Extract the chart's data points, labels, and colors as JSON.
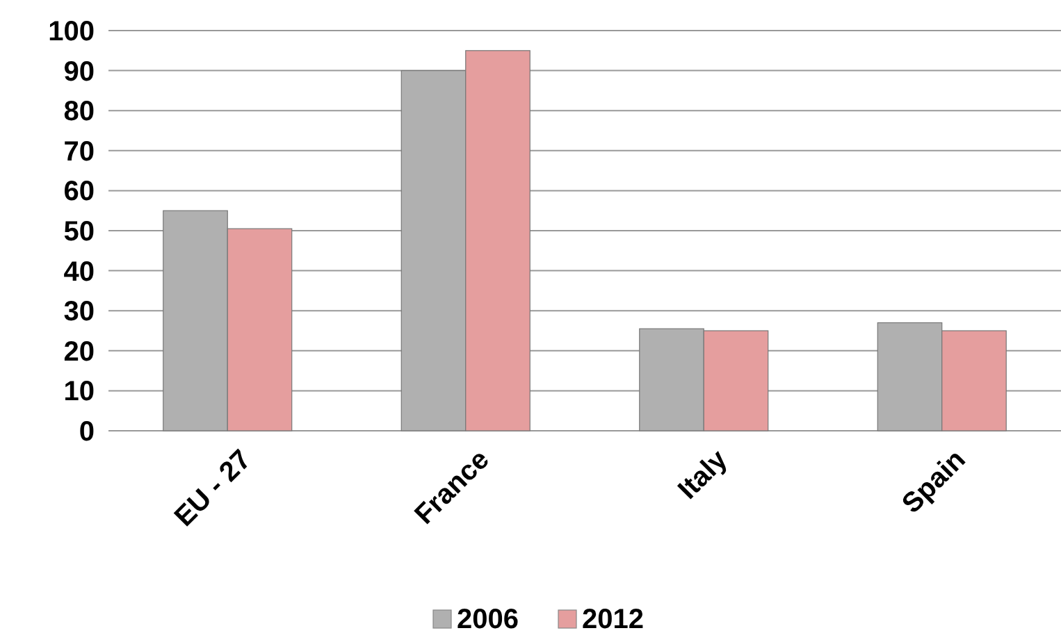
{
  "chart_data": {
    "type": "bar",
    "categories": [
      "EU - 27",
      "France",
      "Italy",
      "Spain"
    ],
    "series": [
      {
        "name": "2006",
        "color": "#b0b0b0",
        "values": [
          55,
          90,
          25.5,
          27
        ]
      },
      {
        "name": "2012",
        "color": "#e59e9e",
        "values": [
          50.5,
          95,
          25,
          25
        ]
      }
    ],
    "ylim": [
      0,
      100
    ],
    "yticks": [
      0,
      10,
      20,
      30,
      40,
      50,
      60,
      70,
      80,
      90,
      100
    ],
    "grid": "y",
    "legend": "bottom"
  }
}
